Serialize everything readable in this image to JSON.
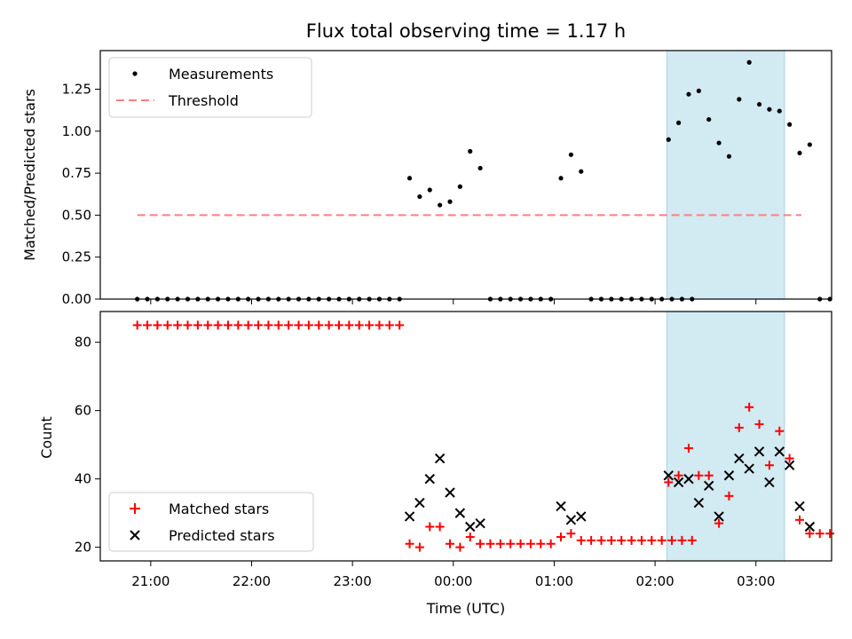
{
  "chart_data": [
    {
      "type": "scatter",
      "title": "Flux total observing time = 1.17 h",
      "ylabel": "Matched/Predicted stars",
      "xlabel": "",
      "xlim": [
        "20:30",
        "03:45"
      ],
      "ylim": [
        0,
        1.48
      ],
      "yticks": [
        "0.00",
        "0.25",
        "0.50",
        "0.75",
        "1.00",
        "1.25"
      ],
      "legend_position": "top-left",
      "highlight_span": [
        "02:07",
        "03:17"
      ],
      "highlight_color": "#add8e6",
      "threshold": {
        "name": "Threshold",
        "value": 0.5,
        "x_range": [
          "20:52",
          "03:27"
        ],
        "color": "#ff7f7f"
      },
      "series": [
        {
          "name": "Measurements",
          "color": "#000000",
          "points": [
            [
              "20:52",
              0
            ],
            [
              "20:58",
              0
            ],
            [
              "21:04",
              0
            ],
            [
              "21:10",
              0
            ],
            [
              "21:16",
              0
            ],
            [
              "21:22",
              0
            ],
            [
              "21:28",
              0
            ],
            [
              "21:34",
              0
            ],
            [
              "21:40",
              0
            ],
            [
              "21:46",
              0
            ],
            [
              "21:52",
              0
            ],
            [
              "21:58",
              0
            ],
            [
              "22:04",
              0
            ],
            [
              "22:10",
              0
            ],
            [
              "22:16",
              0
            ],
            [
              "22:22",
              0
            ],
            [
              "22:28",
              0
            ],
            [
              "22:34",
              0
            ],
            [
              "22:40",
              0
            ],
            [
              "22:46",
              0
            ],
            [
              "22:52",
              0
            ],
            [
              "22:58",
              0
            ],
            [
              "23:04",
              0
            ],
            [
              "23:10",
              0
            ],
            [
              "23:16",
              0
            ],
            [
              "23:22",
              0
            ],
            [
              "23:28",
              0
            ],
            [
              "23:34",
              0.72
            ],
            [
              "23:40",
              0.61
            ],
            [
              "23:46",
              0.65
            ],
            [
              "23:52",
              0.56
            ],
            [
              "23:58",
              0.58
            ],
            [
              "00:04",
              0.67
            ],
            [
              "00:10",
              0.88
            ],
            [
              "00:16",
              0.78
            ],
            [
              "00:22",
              0
            ],
            [
              "00:28",
              0
            ],
            [
              "00:34",
              0
            ],
            [
              "00:40",
              0
            ],
            [
              "00:46",
              0
            ],
            [
              "00:52",
              0
            ],
            [
              "00:58",
              0
            ],
            [
              "01:04",
              0.72
            ],
            [
              "01:10",
              0.86
            ],
            [
              "01:16",
              0.76
            ],
            [
              "01:22",
              0
            ],
            [
              "01:28",
              0
            ],
            [
              "01:34",
              0
            ],
            [
              "01:40",
              0
            ],
            [
              "01:46",
              0
            ],
            [
              "01:52",
              0
            ],
            [
              "01:58",
              0
            ],
            [
              "02:04",
              0
            ],
            [
              "02:10",
              0
            ],
            [
              "02:16",
              0
            ],
            [
              "02:22",
              0
            ],
            [
              "02:08",
              0.95
            ],
            [
              "02:14",
              1.05
            ],
            [
              "02:20",
              1.22
            ],
            [
              "02:26",
              1.24
            ],
            [
              "02:32",
              1.07
            ],
            [
              "02:38",
              0.93
            ],
            [
              "02:44",
              0.85
            ],
            [
              "02:50",
              1.19
            ],
            [
              "02:56",
              1.41
            ],
            [
              "03:02",
              1.16
            ],
            [
              "03:08",
              1.13
            ],
            [
              "03:14",
              1.12
            ],
            [
              "03:20",
              1.04
            ],
            [
              "03:26",
              0.87
            ],
            [
              "03:32",
              0.92
            ],
            [
              "03:38",
              0
            ],
            [
              "03:44",
              0
            ]
          ]
        }
      ]
    },
    {
      "type": "scatter",
      "title": "",
      "ylabel": "Count",
      "xlabel": "Time (UTC)",
      "xlim": [
        "20:30",
        "03:45"
      ],
      "xticks": [
        "21:00",
        "22:00",
        "23:00",
        "00:00",
        "01:00",
        "02:00",
        "03:00"
      ],
      "ylim": [
        16,
        89
      ],
      "yticks": [
        "20",
        "40",
        "60",
        "80"
      ],
      "legend_position": "bottom-left",
      "highlight_span": [
        "02:07",
        "03:17"
      ],
      "highlight_color": "#add8e6",
      "series": [
        {
          "name": "Matched stars",
          "marker": "plus",
          "color": "#ff0000",
          "points": [
            [
              "20:52",
              85
            ],
            [
              "20:58",
              85
            ],
            [
              "21:04",
              85
            ],
            [
              "21:10",
              85
            ],
            [
              "21:16",
              85
            ],
            [
              "21:22",
              85
            ],
            [
              "21:28",
              85
            ],
            [
              "21:34",
              85
            ],
            [
              "21:40",
              85
            ],
            [
              "21:46",
              85
            ],
            [
              "21:52",
              85
            ],
            [
              "21:58",
              85
            ],
            [
              "22:04",
              85
            ],
            [
              "22:10",
              85
            ],
            [
              "22:16",
              85
            ],
            [
              "22:22",
              85
            ],
            [
              "22:28",
              85
            ],
            [
              "22:34",
              85
            ],
            [
              "22:40",
              85
            ],
            [
              "22:46",
              85
            ],
            [
              "22:52",
              85
            ],
            [
              "22:58",
              85
            ],
            [
              "23:04",
              85
            ],
            [
              "23:10",
              85
            ],
            [
              "23:16",
              85
            ],
            [
              "23:22",
              85
            ],
            [
              "23:28",
              85
            ],
            [
              "23:34",
              21
            ],
            [
              "23:40",
              20
            ],
            [
              "23:46",
              26
            ],
            [
              "23:52",
              26
            ],
            [
              "23:58",
              21
            ],
            [
              "00:04",
              20
            ],
            [
              "00:10",
              23
            ],
            [
              "00:16",
              21
            ],
            [
              "00:22",
              21
            ],
            [
              "00:28",
              21
            ],
            [
              "00:34",
              21
            ],
            [
              "00:40",
              21
            ],
            [
              "00:46",
              21
            ],
            [
              "00:52",
              21
            ],
            [
              "00:58",
              21
            ],
            [
              "01:04",
              23
            ],
            [
              "01:10",
              24
            ],
            [
              "01:16",
              22
            ],
            [
              "01:22",
              22
            ],
            [
              "01:28",
              22
            ],
            [
              "01:34",
              22
            ],
            [
              "01:40",
              22
            ],
            [
              "01:46",
              22
            ],
            [
              "01:52",
              22
            ],
            [
              "01:58",
              22
            ],
            [
              "02:04",
              22
            ],
            [
              "02:10",
              22
            ],
            [
              "02:16",
              22
            ],
            [
              "02:22",
              22
            ],
            [
              "02:08",
              39
            ],
            [
              "02:14",
              41
            ],
            [
              "02:20",
              49
            ],
            [
              "02:26",
              41
            ],
            [
              "02:32",
              41
            ],
            [
              "02:38",
              27
            ],
            [
              "02:44",
              35
            ],
            [
              "02:50",
              55
            ],
            [
              "02:56",
              61
            ],
            [
              "03:02",
              56
            ],
            [
              "03:08",
              44
            ],
            [
              "03:14",
              54
            ],
            [
              "03:20",
              46
            ],
            [
              "03:26",
              28
            ],
            [
              "03:32",
              24
            ],
            [
              "03:38",
              24
            ],
            [
              "03:44",
              24
            ]
          ]
        },
        {
          "name": "Predicted stars",
          "marker": "x",
          "color": "#000000",
          "points": [
            [
              "23:34",
              29
            ],
            [
              "23:40",
              33
            ],
            [
              "23:46",
              40
            ],
            [
              "23:52",
              46
            ],
            [
              "23:58",
              36
            ],
            [
              "00:04",
              30
            ],
            [
              "00:10",
              26
            ],
            [
              "00:16",
              27
            ],
            [
              "01:04",
              32
            ],
            [
              "01:10",
              28
            ],
            [
              "01:16",
              29
            ],
            [
              "02:08",
              41
            ],
            [
              "02:14",
              39
            ],
            [
              "02:20",
              40
            ],
            [
              "02:26",
              33
            ],
            [
              "02:32",
              38
            ],
            [
              "02:38",
              29
            ],
            [
              "02:44",
              41
            ],
            [
              "02:50",
              46
            ],
            [
              "02:56",
              43
            ],
            [
              "03:02",
              48
            ],
            [
              "03:08",
              39
            ],
            [
              "03:14",
              48
            ],
            [
              "03:20",
              44
            ],
            [
              "03:26",
              32
            ],
            [
              "03:32",
              26
            ]
          ]
        }
      ]
    }
  ]
}
